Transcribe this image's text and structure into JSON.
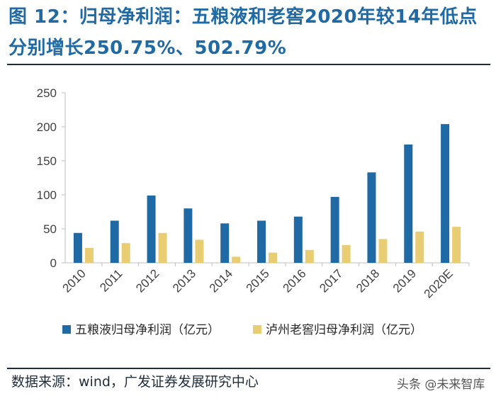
{
  "title": "图  12：归母净利润：五粮液和老窖2020年较14年低点分别增长250.75%、502.79%",
  "source": "数据来源：wind，广发证券发展研究中心",
  "watermark": "头条 @未来智库",
  "chart_data": {
    "type": "bar",
    "categories": [
      "2010",
      "2011",
      "2012",
      "2013",
      "2014",
      "2015",
      "2016",
      "2017",
      "2018",
      "2019",
      "2020E"
    ],
    "series": [
      {
        "name": "五粮液归母净利润（亿元）",
        "color": "#1f6aa5",
        "values": [
          44,
          62,
          99,
          80,
          58,
          62,
          68,
          97,
          133,
          174,
          204
        ]
      },
      {
        "name": "泸州老窖归母净利润（亿元）",
        "color": "#e8cd73",
        "values": [
          22,
          29,
          44,
          34,
          9,
          15,
          19,
          26,
          35,
          46,
          53
        ]
      }
    ],
    "yticks": [
      0,
      50,
      100,
      150,
      200,
      250
    ],
    "ylim": [
      0,
      250
    ],
    "legend": "bottom"
  }
}
